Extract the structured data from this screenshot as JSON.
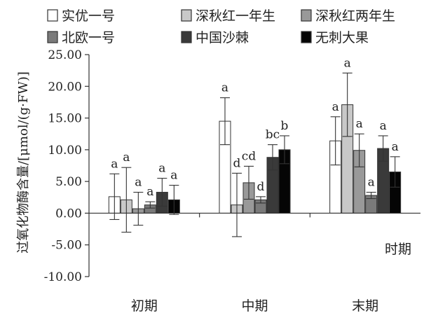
{
  "chart_data": {
    "type": "bar",
    "ylabel": "过氧化物酶含量/[μmol/(g·FW)]",
    "xlabel": "时期",
    "categories": [
      "初期",
      "中期",
      "末期"
    ],
    "ylim": [
      -10,
      25
    ],
    "yticks": [
      "25.00",
      "20.00",
      "15.00",
      "10.00",
      "5.00",
      "0.00",
      "-5.00",
      "-10.00"
    ],
    "ytick_values": [
      25,
      20,
      15,
      10,
      5,
      0,
      -5,
      -10
    ],
    "legend_position": "top",
    "series": [
      {
        "name": "实优一号",
        "color": "#ffffff",
        "values": [
          2.6,
          14.5,
          11.4
        ],
        "errors": [
          3.6,
          3.7,
          3.8
        ],
        "labels": [
          "a",
          "a",
          "a"
        ]
      },
      {
        "name": "深秋红一年生",
        "color": "#c8c8c8",
        "values": [
          2.1,
          1.3,
          17.1
        ],
        "errors": [
          5.1,
          5.0,
          5.0
        ],
        "labels": [
          "a",
          "d",
          "a"
        ]
      },
      {
        "name": "深秋红两年生",
        "color": "#999999",
        "values": [
          0.7,
          4.8,
          9.9
        ],
        "errors": [
          2.6,
          2.6,
          2.6
        ],
        "labels": [
          "a",
          "cd",
          "a"
        ]
      },
      {
        "name": "北欧一号",
        "color": "#7a7a7a",
        "values": [
          1.3,
          2.1,
          2.8
        ],
        "errors": [
          0.5,
          0.5,
          0.5
        ],
        "labels": [
          "a",
          "d",
          "a"
        ]
      },
      {
        "name": "中国沙棘",
        "color": "#3a3a3a",
        "values": [
          3.3,
          8.8,
          10.2
        ],
        "errors": [
          2.2,
          2.0,
          2.0
        ],
        "labels": [
          "a",
          "bc",
          "a"
        ]
      },
      {
        "name": "无刺大果",
        "color": "#050505",
        "values": [
          2.1,
          10.0,
          6.5
        ],
        "errors": [
          2.3,
          2.2,
          2.4
        ],
        "labels": [
          "a",
          "b",
          "a"
        ]
      }
    ]
  }
}
